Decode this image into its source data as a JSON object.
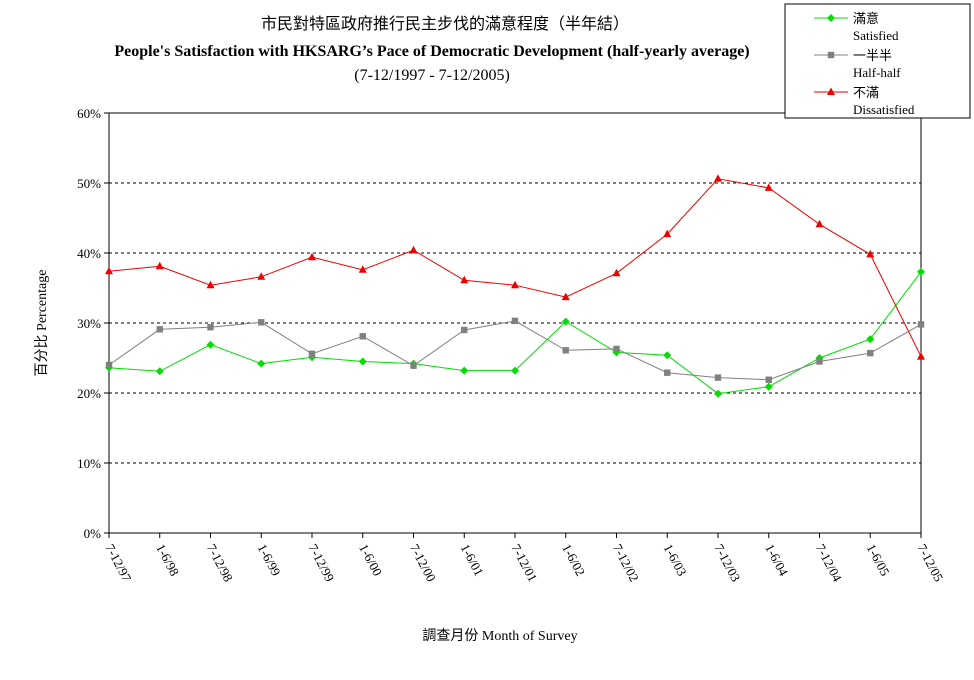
{
  "chart_data": {
    "type": "line",
    "title_zh": "市民對特區政府推行民主步伐的滿意程度（半年結）",
    "title_en": "People's Satisfaction with HKSARG’s Pace of Democratic Development (half-yearly average)",
    "subtitle": "(7-12/1997 - 7-12/2005)",
    "xlabel": "調查月份 Month of Survey",
    "ylabel": "百分比 Percentage",
    "ylim": [
      0,
      60
    ],
    "yticks": [
      "0%",
      "10%",
      "20%",
      "30%",
      "40%",
      "50%",
      "60%"
    ],
    "grid": true,
    "legend_position": "top-right",
    "categories": [
      "7-12/97",
      "1-6/98",
      "7-12/98",
      "1-6/99",
      "7-12/99",
      "1-6/00",
      "7-12/00",
      "1-6/01",
      "7-12/01",
      "1-6/02",
      "7-12/02",
      "1-6/03",
      "7-12/03",
      "1-6/04",
      "7-12/04",
      "1-6/05",
      "7-12/05"
    ],
    "series": [
      {
        "name_zh": "滿意",
        "name_en": "Satisfied",
        "color": "#00dd00",
        "marker": "diamond",
        "values": [
          23.6,
          23.1,
          26.9,
          24.2,
          25.1,
          24.5,
          24.2,
          23.2,
          23.2,
          30.2,
          25.8,
          25.4,
          19.9,
          20.9,
          25.0,
          27.7,
          37.3
        ]
      },
      {
        "name_zh": "一半半",
        "name_en": "Half-half",
        "color": "#808080",
        "marker": "square",
        "values": [
          24.0,
          29.1,
          29.4,
          30.1,
          25.6,
          28.1,
          23.9,
          29.0,
          30.3,
          26.1,
          26.3,
          22.9,
          22.2,
          21.9,
          24.5,
          25.7,
          29.8
        ]
      },
      {
        "name_zh": "不滿",
        "name_en": "Dissatisfied",
        "color": "#ee0000",
        "marker": "triangle",
        "values": [
          37.4,
          38.1,
          35.4,
          36.6,
          39.4,
          37.6,
          40.4,
          36.1,
          35.4,
          33.7,
          37.1,
          42.7,
          50.6,
          49.3,
          44.1,
          39.8,
          25.2
        ]
      }
    ]
  }
}
